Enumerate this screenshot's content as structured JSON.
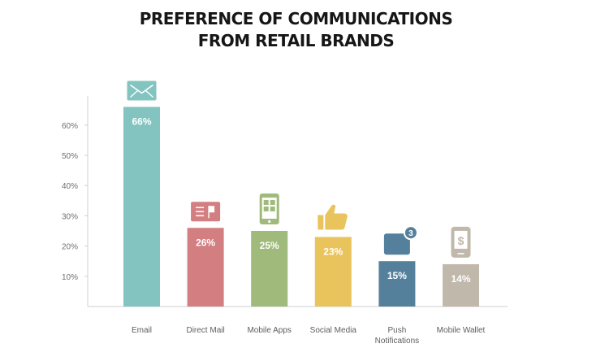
{
  "title_lines": [
    "PREFERENCE OF COMMUNICATIONS",
    "FROM RETAIL BRANDS"
  ],
  "chart_data": {
    "type": "bar",
    "title": "PREFERENCE OF COMMUNICATIONS FROM RETAIL BRANDS",
    "categories": [
      "Email",
      "Direct Mail",
      "Mobile Apps",
      "Social Media",
      "Push Notifications",
      "Mobile Wallet"
    ],
    "category_lines": [
      [
        "Email"
      ],
      [
        "Direct Mail"
      ],
      [
        "Mobile Apps"
      ],
      [
        "Social Media"
      ],
      [
        "Push",
        "Notifications"
      ],
      [
        "Mobile Wallet"
      ]
    ],
    "values": [
      66,
      26,
      25,
      23,
      15,
      14
    ],
    "value_labels": [
      "66%",
      "26%",
      "25%",
      "23%",
      "15%",
      "14%"
    ],
    "colors": [
      "#83c4c0",
      "#d37e80",
      "#9fba7b",
      "#e9c45d",
      "#54809c",
      "#c0b8ab"
    ],
    "icons": [
      "envelope-icon",
      "mailbox-icon",
      "mobile-app-icon",
      "thumbs-up-icon",
      "notification-icon",
      "mobile-wallet-icon"
    ],
    "notification_badge": "3",
    "yticks": [
      10,
      20,
      30,
      40,
      50,
      60
    ],
    "ytick_labels": [
      "10%",
      "20%",
      "30%",
      "40%",
      "50%",
      "60%"
    ],
    "ylim": [
      0,
      70
    ],
    "xlabel": "",
    "ylabel": "",
    "grid": false,
    "legend": "none"
  }
}
